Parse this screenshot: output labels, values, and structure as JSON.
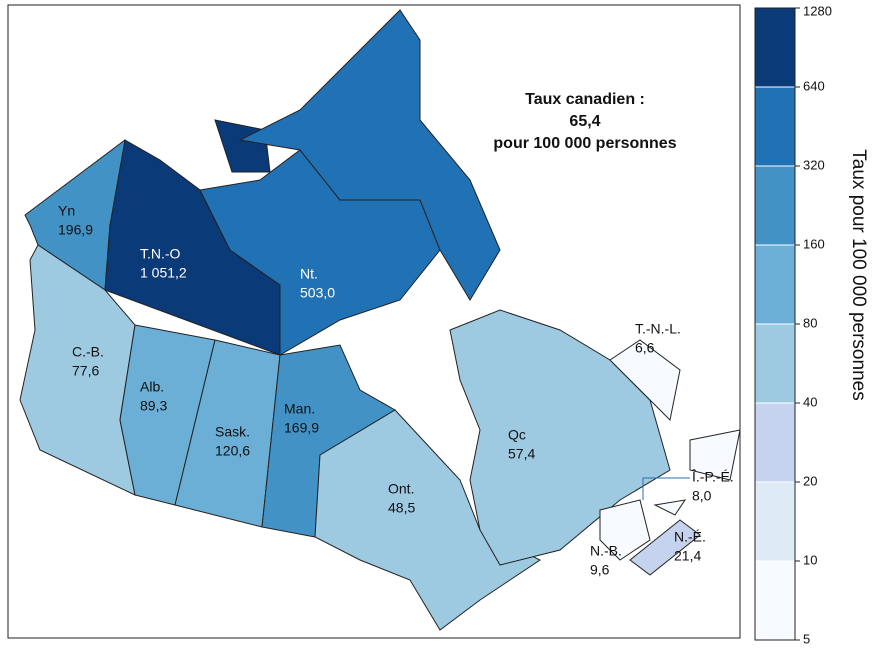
{
  "title_lines": [
    "Taux canadien :",
    "65,4",
    "pour 100 000 personnes"
  ],
  "legend": {
    "label": "Taux pour 100 000 personnes",
    "log_scale": true,
    "ticks": [
      5,
      10,
      20,
      40,
      80,
      160,
      320,
      640,
      1280
    ],
    "colors": [
      "#f7fbff",
      "#deebf7",
      "#c6d3ee",
      "#9ecae1",
      "#6baed6",
      "#4292c6",
      "#2171b5",
      "#0b3a78"
    ]
  },
  "regions": [
    {
      "name": "Yn",
      "value": 196.9,
      "value_label": "196,9"
    },
    {
      "name": "T.N.-O",
      "value": 1051.2,
      "value_label": "1 051,2"
    },
    {
      "name": "Nt.",
      "value": 503.0,
      "value_label": "503,0"
    },
    {
      "name": "C.-B.",
      "value": 77.6,
      "value_label": "77,6"
    },
    {
      "name": "Alb.",
      "value": 89.3,
      "value_label": "89,3"
    },
    {
      "name": "Sask.",
      "value": 120.6,
      "value_label": "120,6"
    },
    {
      "name": "Man.",
      "value": 169.9,
      "value_label": "169,9"
    },
    {
      "name": "Ont.",
      "value": 48.5,
      "value_label": "48,5"
    },
    {
      "name": "Qc",
      "value": 57.4,
      "value_label": "57,4"
    },
    {
      "name": "T.-N.-L.",
      "value": 6.6,
      "value_label": "6,6"
    },
    {
      "name": "Î.-P.-É.",
      "value": 8.0,
      "value_label": "8,0"
    },
    {
      "name": "N.-B.",
      "value": 9.6,
      "value_label": "9,6"
    },
    {
      "name": "N.-É.",
      "value": 21.4,
      "value_label": "21,4"
    }
  ]
}
